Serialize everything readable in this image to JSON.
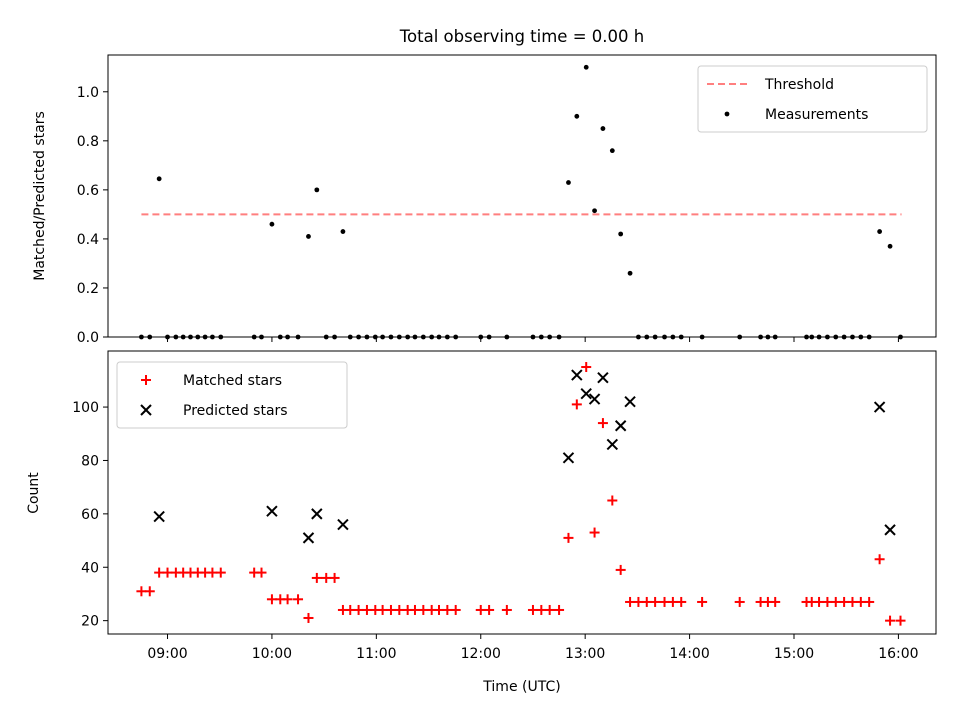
{
  "chart_data": [
    {
      "type": "scatter",
      "title": "Total observing time = 0.00 h",
      "ylabel": "Matched/Predicted stars",
      "xlabel": "",
      "ylim": [
        0,
        1.15
      ],
      "xlim": [
        8.43,
        16.36
      ],
      "yticks": [
        0.0,
        0.2,
        0.4,
        0.6,
        0.8,
        1.0
      ],
      "ytick_labels": [
        "0.0",
        "0.2",
        "0.4",
        "0.6",
        "0.8",
        "1.0"
      ],
      "xticks": [
        9,
        10,
        11,
        12,
        13,
        14,
        15,
        16
      ],
      "legend": {
        "position": "top-right",
        "entries": [
          "Threshold",
          "Measurements"
        ]
      },
      "threshold": {
        "name": "Threshold",
        "y": 0.5,
        "x_range": [
          8.75,
          16.03
        ],
        "color": "#ff7f7f"
      },
      "series": [
        {
          "name": "Measurements",
          "color": "#000000",
          "points": [
            [
              8.75,
              0
            ],
            [
              8.83,
              0
            ],
            [
              8.92,
              0.645
            ],
            [
              9.0,
              0
            ],
            [
              9.08,
              0
            ],
            [
              9.15,
              0
            ],
            [
              9.22,
              0
            ],
            [
              9.29,
              0
            ],
            [
              9.36,
              0
            ],
            [
              9.43,
              0
            ],
            [
              9.51,
              0
            ],
            [
              9.83,
              0
            ],
            [
              9.9,
              0
            ],
            [
              10.0,
              0.46
            ],
            [
              10.08,
              0
            ],
            [
              10.15,
              0
            ],
            [
              10.25,
              0
            ],
            [
              10.35,
              0.41
            ],
            [
              10.43,
              0.6
            ],
            [
              10.52,
              0
            ],
            [
              10.6,
              0
            ],
            [
              10.68,
              0.43
            ],
            [
              10.75,
              0
            ],
            [
              10.83,
              0
            ],
            [
              10.91,
              0
            ],
            [
              10.99,
              0
            ],
            [
              11.06,
              0
            ],
            [
              11.14,
              0
            ],
            [
              11.22,
              0
            ],
            [
              11.3,
              0
            ],
            [
              11.37,
              0
            ],
            [
              11.45,
              0
            ],
            [
              11.53,
              0
            ],
            [
              11.6,
              0
            ],
            [
              11.68,
              0
            ],
            [
              11.76,
              0
            ],
            [
              12.0,
              0
            ],
            [
              12.08,
              0
            ],
            [
              12.25,
              0
            ],
            [
              12.5,
              0
            ],
            [
              12.58,
              0
            ],
            [
              12.66,
              0
            ],
            [
              12.75,
              0
            ],
            [
              12.84,
              0.63
            ],
            [
              12.92,
              0.9
            ],
            [
              13.01,
              1.1
            ],
            [
              13.09,
              0.515
            ],
            [
              13.17,
              0.85
            ],
            [
              13.26,
              0.76
            ],
            [
              13.34,
              0.42
            ],
            [
              13.43,
              0.26
            ],
            [
              13.51,
              0
            ],
            [
              13.59,
              0
            ],
            [
              13.67,
              0
            ],
            [
              13.76,
              0
            ],
            [
              13.84,
              0
            ],
            [
              13.92,
              0
            ],
            [
              14.12,
              0
            ],
            [
              14.48,
              0
            ],
            [
              14.68,
              0
            ],
            [
              14.75,
              0
            ],
            [
              14.82,
              0
            ],
            [
              15.12,
              0
            ],
            [
              15.17,
              0
            ],
            [
              15.24,
              0
            ],
            [
              15.32,
              0
            ],
            [
              15.4,
              0
            ],
            [
              15.48,
              0
            ],
            [
              15.56,
              0
            ],
            [
              15.64,
              0
            ],
            [
              15.72,
              0
            ],
            [
              15.82,
              0.43
            ],
            [
              15.92,
              0.37
            ],
            [
              16.02,
              0
            ]
          ]
        }
      ]
    },
    {
      "type": "scatter",
      "title": "",
      "xlabel": "Time (UTC)",
      "ylabel": "Count",
      "ylim": [
        15,
        121
      ],
      "xlim": [
        8.43,
        16.36
      ],
      "yticks": [
        20,
        40,
        60,
        80,
        100
      ],
      "ytick_labels": [
        "20",
        "40",
        "60",
        "80",
        "100"
      ],
      "xticks": [
        9,
        10,
        11,
        12,
        13,
        14,
        15,
        16
      ],
      "xtick_labels": [
        "09:00",
        "10:00",
        "11:00",
        "12:00",
        "13:00",
        "14:00",
        "15:00",
        "16:00"
      ],
      "legend": {
        "position": "top-left",
        "entries": [
          "Matched stars",
          "Predicted stars"
        ]
      },
      "series": [
        {
          "name": "Matched stars",
          "color": "#ff0000",
          "marker": "+",
          "points": [
            [
              8.75,
              31
            ],
            [
              8.83,
              31
            ],
            [
              8.92,
              38
            ],
            [
              9.0,
              38
            ],
            [
              9.08,
              38
            ],
            [
              9.15,
              38
            ],
            [
              9.22,
              38
            ],
            [
              9.29,
              38
            ],
            [
              9.36,
              38
            ],
            [
              9.43,
              38
            ],
            [
              9.51,
              38
            ],
            [
              9.83,
              38
            ],
            [
              9.9,
              38
            ],
            [
              10.0,
              28
            ],
            [
              10.08,
              28
            ],
            [
              10.15,
              28
            ],
            [
              10.25,
              28
            ],
            [
              10.35,
              21
            ],
            [
              10.43,
              36
            ],
            [
              10.52,
              36
            ],
            [
              10.6,
              36
            ],
            [
              10.68,
              24
            ],
            [
              10.75,
              24
            ],
            [
              10.83,
              24
            ],
            [
              10.91,
              24
            ],
            [
              10.99,
              24
            ],
            [
              11.06,
              24
            ],
            [
              11.14,
              24
            ],
            [
              11.22,
              24
            ],
            [
              11.3,
              24
            ],
            [
              11.37,
              24
            ],
            [
              11.45,
              24
            ],
            [
              11.53,
              24
            ],
            [
              11.6,
              24
            ],
            [
              11.68,
              24
            ],
            [
              11.76,
              24
            ],
            [
              12.0,
              24
            ],
            [
              12.08,
              24
            ],
            [
              12.25,
              24
            ],
            [
              12.5,
              24
            ],
            [
              12.58,
              24
            ],
            [
              12.66,
              24
            ],
            [
              12.75,
              24
            ],
            [
              12.84,
              51
            ],
            [
              12.92,
              101
            ],
            [
              13.01,
              115
            ],
            [
              13.09,
              53
            ],
            [
              13.17,
              94
            ],
            [
              13.26,
              65
            ],
            [
              13.34,
              39
            ],
            [
              13.43,
              27
            ],
            [
              13.51,
              27
            ],
            [
              13.59,
              27
            ],
            [
              13.67,
              27
            ],
            [
              13.76,
              27
            ],
            [
              13.84,
              27
            ],
            [
              13.92,
              27
            ],
            [
              14.12,
              27
            ],
            [
              14.48,
              27
            ],
            [
              14.68,
              27
            ],
            [
              14.75,
              27
            ],
            [
              14.82,
              27
            ],
            [
              15.12,
              27
            ],
            [
              15.17,
              27
            ],
            [
              15.24,
              27
            ],
            [
              15.32,
              27
            ],
            [
              15.4,
              27
            ],
            [
              15.48,
              27
            ],
            [
              15.56,
              27
            ],
            [
              15.64,
              27
            ],
            [
              15.72,
              27
            ],
            [
              15.82,
              43
            ],
            [
              15.92,
              20
            ],
            [
              16.02,
              20
            ]
          ]
        },
        {
          "name": "Predicted stars",
          "color": "#000000",
          "marker": "x",
          "points": [
            [
              8.92,
              59
            ],
            [
              10.0,
              61
            ],
            [
              10.35,
              51
            ],
            [
              10.43,
              60
            ],
            [
              10.68,
              56
            ],
            [
              12.84,
              81
            ],
            [
              12.92,
              112
            ],
            [
              13.01,
              105
            ],
            [
              13.09,
              103
            ],
            [
              13.17,
              111
            ],
            [
              13.26,
              86
            ],
            [
              13.34,
              93
            ],
            [
              13.43,
              102
            ],
            [
              15.82,
              100
            ],
            [
              15.92,
              54
            ]
          ]
        }
      ]
    }
  ]
}
